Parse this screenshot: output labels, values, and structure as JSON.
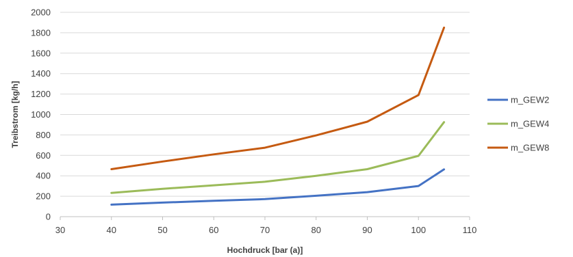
{
  "chart_data": {
    "type": "line",
    "title": "",
    "xlabel": "Hochdruck [bar (a)]",
    "ylabel": "Treibstrom [kg/h]",
    "xlim": [
      30,
      110
    ],
    "ylim": [
      0,
      2000
    ],
    "xticks": [
      30,
      40,
      50,
      60,
      70,
      80,
      90,
      100,
      110
    ],
    "yticks": [
      0,
      200,
      400,
      600,
      800,
      1000,
      1200,
      1400,
      1600,
      1800,
      2000
    ],
    "grid": "horizontal",
    "legend": "right",
    "series": [
      {
        "name": "m_GEW2",
        "color": "#4472c4",
        "points": [
          [
            40,
            118
          ],
          [
            50,
            138
          ],
          [
            60,
            155
          ],
          [
            70,
            172
          ],
          [
            80,
            205
          ],
          [
            90,
            240
          ],
          [
            100,
            300
          ],
          [
            105,
            463
          ]
        ]
      },
      {
        "name": "m_GEW4",
        "color": "#9bbb59",
        "points": [
          [
            40,
            233
          ],
          [
            50,
            273
          ],
          [
            60,
            307
          ],
          [
            70,
            342
          ],
          [
            80,
            400
          ],
          [
            90,
            465
          ],
          [
            100,
            595
          ],
          [
            105,
            925
          ]
        ]
      },
      {
        "name": "m_GEW8",
        "color": "#c55a11",
        "points": [
          [
            40,
            465
          ],
          [
            50,
            540
          ],
          [
            60,
            610
          ],
          [
            70,
            675
          ],
          [
            80,
            795
          ],
          [
            90,
            930
          ],
          [
            100,
            1190
          ],
          [
            105,
            1850
          ]
        ]
      }
    ]
  }
}
